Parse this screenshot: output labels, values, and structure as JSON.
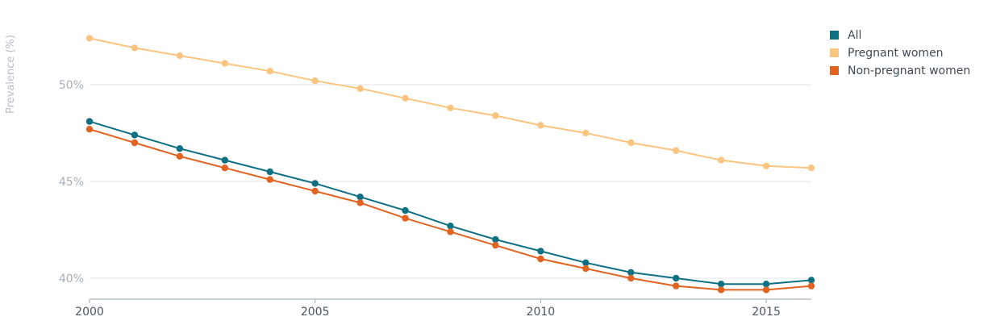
{
  "chart_data": {
    "type": "line",
    "ylabel": "Prevalence (%)",
    "xlim": [
      2000,
      2016
    ],
    "ylim": [
      39,
      54
    ],
    "yticks": [
      {
        "value": 40,
        "label": "40%"
      },
      {
        "value": 45,
        "label": "45%"
      },
      {
        "value": 50,
        "label": "50%"
      }
    ],
    "xticks": [
      {
        "value": 2000,
        "label": "2000"
      },
      {
        "value": 2005,
        "label": "2005"
      },
      {
        "value": 2010,
        "label": "2010"
      },
      {
        "value": 2015,
        "label": "2015"
      }
    ],
    "legend_position": "top-right",
    "x": [
      2000,
      2001,
      2002,
      2003,
      2004,
      2005,
      2006,
      2007,
      2008,
      2009,
      2010,
      2011,
      2012,
      2013,
      2014,
      2015,
      2016
    ],
    "series": [
      {
        "name": "All",
        "color": "#0e7183",
        "values": [
          48.1,
          47.4,
          46.7,
          46.1,
          45.5,
          44.9,
          44.2,
          43.5,
          42.7,
          42.0,
          41.4,
          40.8,
          40.3,
          40.0,
          39.7,
          39.7,
          39.9
        ]
      },
      {
        "name": "Pregnant women",
        "color": "#fbc47f",
        "values": [
          52.4,
          51.9,
          51.5,
          51.1,
          50.7,
          50.2,
          49.8,
          49.3,
          48.8,
          48.4,
          47.9,
          47.5,
          47.0,
          46.6,
          46.1,
          45.8,
          45.7
        ]
      },
      {
        "name": "Non-pregnant women",
        "color": "#e2621f",
        "values": [
          47.7,
          47.0,
          46.3,
          45.7,
          45.1,
          44.5,
          43.9,
          43.1,
          42.4,
          41.7,
          41.0,
          40.5,
          40.0,
          39.6,
          39.4,
          39.4,
          39.6
        ]
      }
    ]
  }
}
